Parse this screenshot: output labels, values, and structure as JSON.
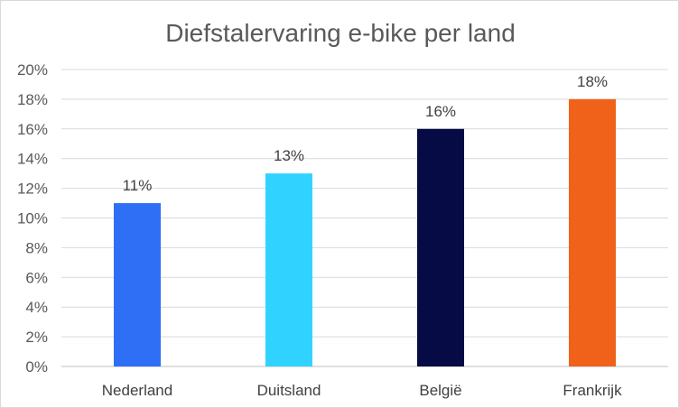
{
  "chart_data": {
    "type": "bar",
    "title": "Diefstalervaring e-bike per land",
    "categories": [
      "Nederland",
      "Duitsland",
      "België",
      "Frankrijk"
    ],
    "values": [
      11,
      13,
      16,
      18
    ],
    "data_labels": [
      "11%",
      "13%",
      "16%",
      "18%"
    ],
    "colors": [
      "#2e6ff5",
      "#30d3ff",
      "#060b45",
      "#f0621a"
    ],
    "ylim": [
      0,
      20
    ],
    "yticks": [
      0,
      2,
      4,
      6,
      8,
      10,
      12,
      14,
      16,
      18,
      20
    ],
    "ytick_labels": [
      "0%",
      "2%",
      "4%",
      "6%",
      "8%",
      "10%",
      "12%",
      "14%",
      "16%",
      "18%",
      "20%"
    ],
    "grid": true,
    "legend": "none",
    "xlabel": "",
    "ylabel": ""
  }
}
